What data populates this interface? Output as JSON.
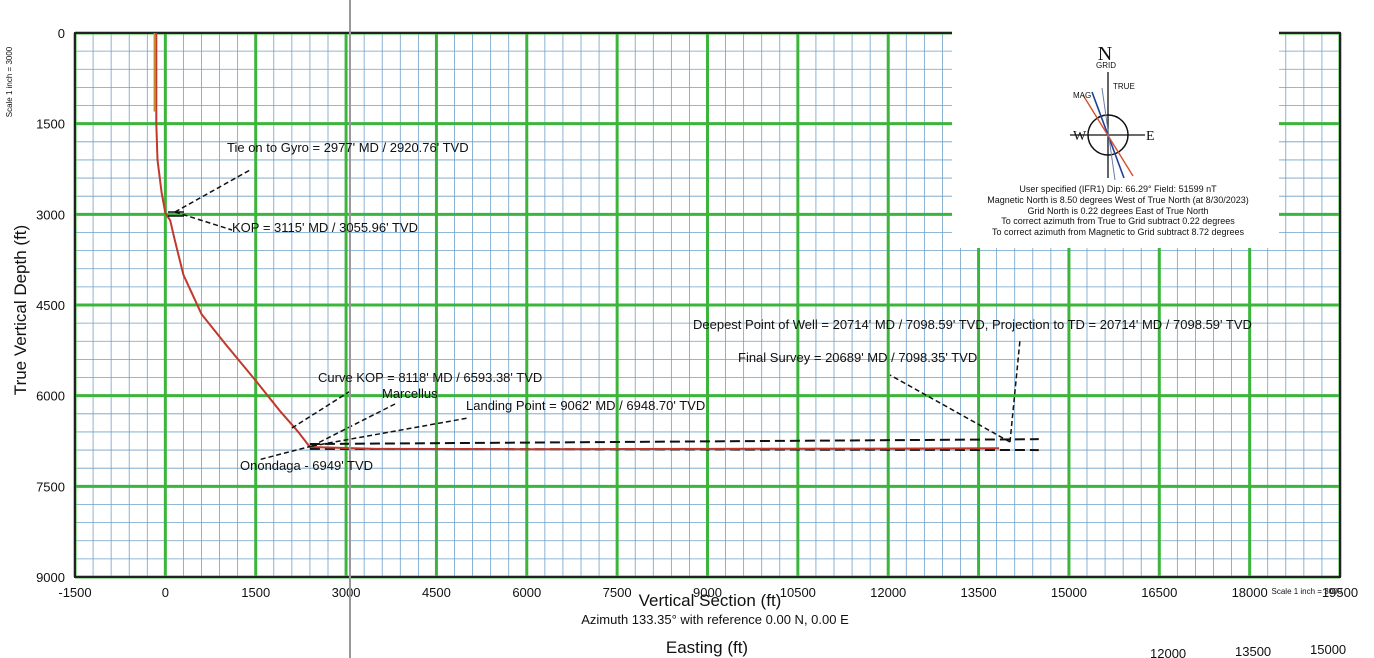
{
  "chart_data": {
    "type": "line",
    "xlabel": "Vertical Section (ft)",
    "ylabel": "True Vertical Depth (ft)",
    "x_subtitle": "Azimuth 133.35° with reference 0.00 N, 0.00 E",
    "bottom_label": "Easting (ft)",
    "scale_left": "Scale 1 inch = 3000",
    "scale_right": "Scale 1 inch = 3000",
    "xlim": [
      -1500,
      19500
    ],
    "ylim": [
      0,
      9000
    ],
    "y_inverted": true,
    "x_ticks": [
      "-1500",
      "0",
      "1500",
      "3000",
      "4500",
      "6000",
      "7500",
      "9000",
      "10500",
      "12000",
      "13500",
      "15000",
      "16500",
      "18000",
      "19500"
    ],
    "y_ticks": [
      "0",
      "1500",
      "3000",
      "4500",
      "6000",
      "7500",
      "9000"
    ],
    "grid": true,
    "series": [
      {
        "color": "#c0392b",
        "x": [
          -150,
          -150,
          -130,
          -60,
          0,
          80,
          150,
          300,
          600,
          1000,
          1500,
          1900,
          2200,
          2400,
          3500,
          6000,
          9000,
          12000,
          13840
        ],
        "y": [
          0,
          1500,
          2100,
          2650,
          2980,
          3100,
          3400,
          4000,
          4650,
          5150,
          5750,
          6250,
          6593,
          6850,
          6880,
          6885,
          6880,
          6875,
          6870
        ]
      }
    ],
    "survey_band": {
      "x": [
        2400,
        14500
      ],
      "y_top": [
        6800,
        6720
      ],
      "y_bottom": [
        6880,
        6900
      ]
    },
    "annotations": [
      {
        "id": "tie-on",
        "text": "Tie on to Gyro = 2977' MD / 2920.76' TVD"
      },
      {
        "id": "kop",
        "text": "KOP = 3115' MD / 3055.96' TVD"
      },
      {
        "id": "curve-kop",
        "text": "Curve KOP = 8118' MD / 6593.38' TVD"
      },
      {
        "id": "marcellus",
        "text": "Marcellus"
      },
      {
        "id": "landing",
        "text": "Landing Point = 9062' MD / 6948.70' TVD"
      },
      {
        "id": "onondaga",
        "text": "Onondaga - 6949' TVD"
      },
      {
        "id": "deepest",
        "text": "Deepest Point of Well = 20714' MD / 7098.59' TVD, Projection to TD = 20714' MD / 7098.59' TVD"
      },
      {
        "id": "final-survey",
        "text": "Final Survey = 20689' MD  / 7098.35' TVD"
      }
    ],
    "legend": {
      "north_letter": "N",
      "grid_letter": "GRID",
      "west_letter": "W",
      "east_letter": "E",
      "mag_label": "MAG",
      "true_label": "TRUE",
      "lines": [
        "User specified (IFR1) Dip: 66.29°  Field: 51599 nT",
        "Magnetic North is 8.50 degrees West of True North (at 8/30/2023)",
        "Grid North is 0.22 degrees East of True North",
        "To correct azimuth from True to Grid subtract 0.22 degrees",
        "To correct azimuth from Magnetic to Grid subtract 8.72 degrees"
      ]
    },
    "partial_bottom_ticks": [
      "12000",
      "13500",
      "15000"
    ]
  },
  "colors": {
    "grid_major": "#3cb53c",
    "grid_minor": "#6fa0c8",
    "well_path": "#c0392b"
  }
}
